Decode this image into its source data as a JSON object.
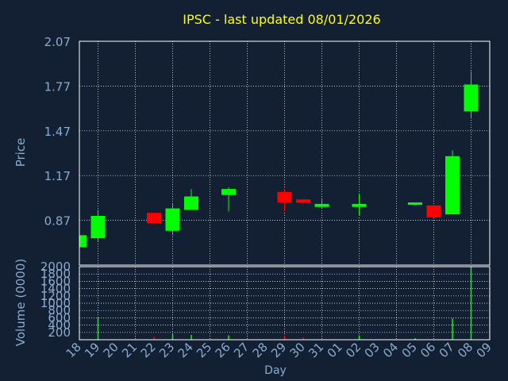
{
  "chart_data": {
    "type": "candlestick",
    "title": "IPSC - last updated 08/01/2026",
    "xlabel": "Day",
    "ylabel_price": "Price",
    "ylabel_volume": "Volume (0000)",
    "price_ticks": [
      "0.87",
      "1.17",
      "1.47",
      "1.77",
      "2.07"
    ],
    "price_ylim": [
      0.57,
      2.07
    ],
    "volume_ticks": [
      "200",
      "400",
      "600",
      "800",
      "1000",
      "1200",
      "1400",
      "1600",
      "1800",
      "2000"
    ],
    "volume_ylim": [
      0,
      2000
    ],
    "x_ticks": [
      "18",
      "19",
      "20",
      "21",
      "22",
      "23",
      "24",
      "25",
      "26",
      "27",
      "28",
      "29",
      "30",
      "31",
      "01",
      "02",
      "03",
      "04",
      "05",
      "06",
      "07",
      "08",
      "09"
    ],
    "grid": true,
    "colors": {
      "background": "#132033",
      "title": "#ffff00",
      "text": "#8aaace",
      "grid": "#ffffff",
      "up": "#00ff00",
      "down": "#ff0000"
    },
    "candles": [
      {
        "x": "18",
        "open": 0.69,
        "high": 0.77,
        "low": 0.69,
        "close": 0.77
      },
      {
        "x": "19",
        "open": 0.75,
        "high": 0.94,
        "low": 0.73,
        "close": 0.9
      },
      {
        "x": "22",
        "open": 0.92,
        "high": 0.92,
        "low": 0.84,
        "close": 0.85
      },
      {
        "x": "23",
        "open": 0.8,
        "high": 0.98,
        "low": 0.77,
        "close": 0.95
      },
      {
        "x": "24",
        "open": 0.94,
        "high": 1.08,
        "low": 0.94,
        "close": 1.03
      },
      {
        "x": "26",
        "open": 1.04,
        "high": 1.09,
        "low": 0.93,
        "close": 1.08
      },
      {
        "x": "29",
        "open": 1.06,
        "high": 1.08,
        "low": 0.93,
        "close": 0.99
      },
      {
        "x": "30",
        "open": 1.01,
        "high": 1.01,
        "low": 0.98,
        "close": 0.99
      },
      {
        "x": "31",
        "open": 0.96,
        "high": 1.01,
        "low": 0.95,
        "close": 0.98
      },
      {
        "x": "02",
        "open": 0.96,
        "high": 1.05,
        "low": 0.9,
        "close": 0.98
      },
      {
        "x": "05",
        "open": 0.98,
        "high": 0.99,
        "low": 0.97,
        "close": 0.99
      },
      {
        "x": "06",
        "open": 0.97,
        "high": 0.97,
        "low": 0.88,
        "close": 0.89
      },
      {
        "x": "07",
        "open": 0.91,
        "high": 1.34,
        "low": 0.91,
        "close": 1.3
      },
      {
        "x": "08",
        "open": 1.6,
        "high": 1.87,
        "low": 1.56,
        "close": 1.78
      }
    ],
    "volume": [
      {
        "x": "19",
        "value": 600,
        "dir": "up"
      },
      {
        "x": "22",
        "value": 80,
        "dir": "down"
      },
      {
        "x": "23",
        "value": 150,
        "dir": "up"
      },
      {
        "x": "24",
        "value": 130,
        "dir": "up"
      },
      {
        "x": "26",
        "value": 120,
        "dir": "up"
      },
      {
        "x": "29",
        "value": 110,
        "dir": "down"
      },
      {
        "x": "30",
        "value": 60,
        "dir": "down"
      },
      {
        "x": "02",
        "value": 120,
        "dir": "up"
      },
      {
        "x": "05",
        "value": 40,
        "dir": "up"
      },
      {
        "x": "07",
        "value": 580,
        "dir": "up"
      },
      {
        "x": "08",
        "value": 1980,
        "dir": "up"
      }
    ]
  }
}
